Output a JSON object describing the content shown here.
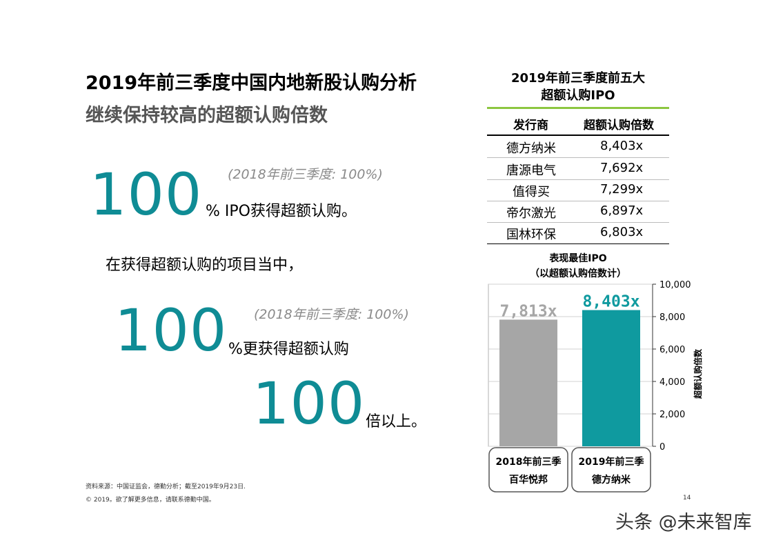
{
  "header": {
    "title": "2019年前三季度中国内地新股认购分析",
    "subtitle": "继续保持较高的超额认购倍数"
  },
  "stats": [
    {
      "value": "100",
      "suffix": "% IPO获得超额认购。",
      "note": "(2018年前三季度: 100%)"
    },
    {
      "intro": "在获得超额认购的项目当中，"
    },
    {
      "value": "100",
      "suffix": "%更获得超额认购",
      "note": "(2018年前三季度: 100%)"
    },
    {
      "value": "100",
      "suffix": "倍以上。"
    }
  ],
  "top_table": {
    "title_line1": "2019年前三季度前五大",
    "title_line2": "超额认购IPO",
    "col_issuer": "发行商",
    "col_multiple": "超额认购倍数",
    "rows": [
      {
        "issuer": "德方纳米",
        "multiple": "8,403x"
      },
      {
        "issuer": "唐源电气",
        "multiple": "7,692x"
      },
      {
        "issuer": "值得买",
        "multiple": "7,299x"
      },
      {
        "issuer": "帝尔激光",
        "multiple": "6,897x"
      },
      {
        "issuer": "国林环保",
        "multiple": "6,803x"
      }
    ]
  },
  "chart_title": {
    "line1": "表现最佳IPO",
    "line2": "（以超额认购倍数计）"
  },
  "chart_data": {
    "type": "bar",
    "categories": [
      "2018年前三季 百华悦邦",
      "2019年前三季 德方纳米"
    ],
    "values": [
      7813,
      8403
    ],
    "data_labels": [
      "7,813x",
      "8,403x"
    ],
    "category_line1": [
      "2018年前三季",
      "2019年前三季"
    ],
    "category_line2": [
      "百华悦邦",
      "德方纳米"
    ],
    "ylabel": "超额认购倍数",
    "ylim": [
      0,
      10000
    ],
    "yticks": [
      0,
      2000,
      4000,
      6000,
      8000,
      10000
    ],
    "ytick_labels": [
      "0",
      "2,000",
      "4,000",
      "6,000",
      "8,000",
      "10,000"
    ],
    "grid": true,
    "colors": [
      "#a6a6a6",
      "#0f9a9f"
    ]
  },
  "footer": {
    "source": "资料来源：中国证监会，德勤分析；截至2019年9月23日.",
    "copyright": "© 2019。欲了解更多信息，请联系德勤中国。",
    "page_number": "14",
    "watermark": "头条 @未来智库"
  },
  "colors": {
    "accent": "#0f8c95",
    "table_rule": "#8cc63f",
    "bar_2018": "#a6a6a6",
    "bar_2019": "#0f9a9f"
  }
}
